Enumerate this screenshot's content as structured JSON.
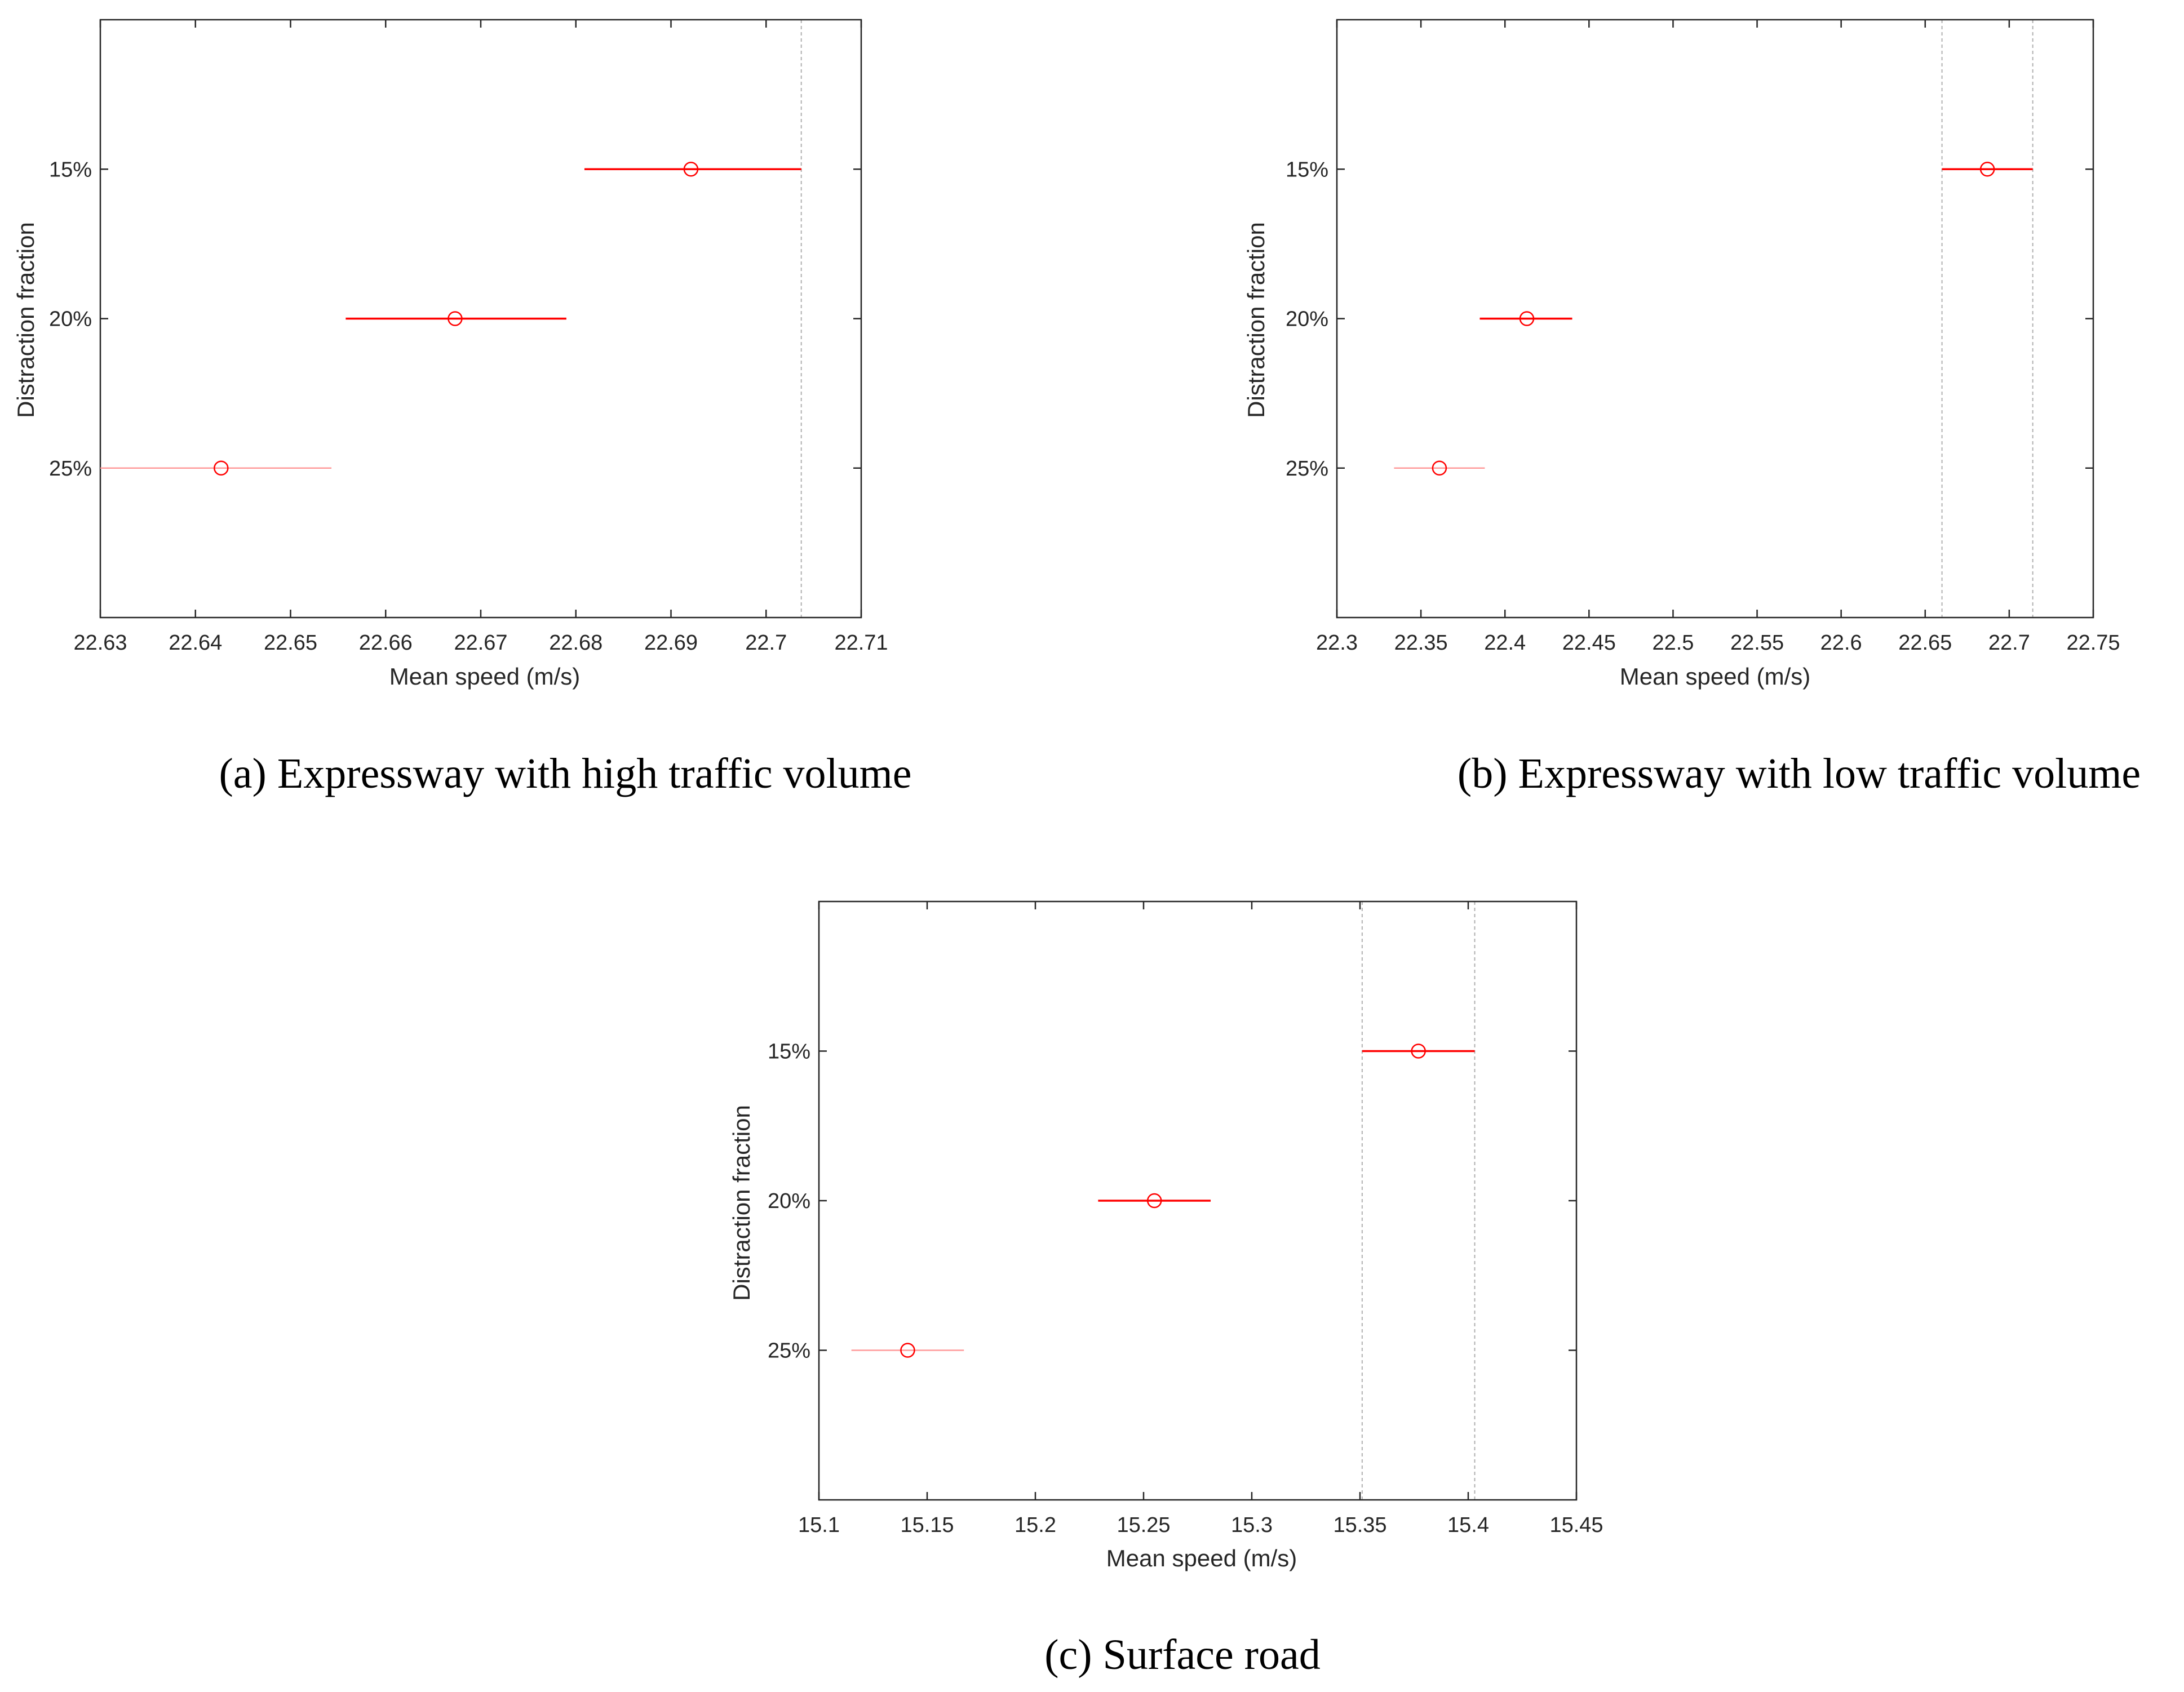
{
  "colors": {
    "series": "#ff0000",
    "series_faint": "#ff9a9a",
    "axes": "#262626",
    "reference_line": "#b0b0b0"
  },
  "chart_data": [
    {
      "type": "scatter",
      "subtype": "multiple-comparison-intervals",
      "caption": "(a) Expressway with high traffic volume",
      "xlabel": "Mean speed (m/s)",
      "ylabel": "Distraction fraction",
      "categories": [
        "15%",
        "20%",
        "25%"
      ],
      "xlim": [
        22.63,
        22.71
      ],
      "xticks": [
        22.63,
        22.64,
        22.65,
        22.66,
        22.67,
        22.68,
        22.69,
        22.7,
        22.71
      ],
      "xtick_labels": [
        "22.63",
        "22.64",
        "22.65",
        "22.66",
        "22.67",
        "22.68",
        "22.69",
        "22.7",
        "22.71"
      ],
      "series": [
        {
          "means": [
            22.6921,
            22.6673,
            22.6427
          ],
          "lower": [
            22.6809,
            22.6558,
            22.63
          ],
          "upper": [
            22.7037,
            22.679,
            22.6543
          ]
        }
      ],
      "highlighted_group": "25%",
      "reference_lines": [
        22.7037
      ]
    },
    {
      "type": "scatter",
      "subtype": "multiple-comparison-intervals",
      "caption": "(b) Expressway with low traffic volume",
      "xlabel": "Mean speed (m/s)",
      "ylabel": "Distraction fraction",
      "categories": [
        "15%",
        "20%",
        "25%"
      ],
      "xlim": [
        22.3,
        22.75
      ],
      "xticks": [
        22.3,
        22.35,
        22.4,
        22.45,
        22.5,
        22.55,
        22.6,
        22.65,
        22.7,
        22.75
      ],
      "xtick_labels": [
        "22.3",
        "22.35",
        "22.4",
        "22.45",
        "22.5",
        "22.55",
        "22.6",
        "22.65",
        "22.7",
        "22.75"
      ],
      "series": [
        {
          "means": [
            22.687,
            22.413,
            22.361
          ],
          "lower": [
            22.66,
            22.385,
            22.334
          ],
          "upper": [
            22.714,
            22.44,
            22.388
          ]
        }
      ],
      "highlighted_group": "25%",
      "reference_lines": [
        22.66,
        22.714
      ]
    },
    {
      "type": "scatter",
      "subtype": "multiple-comparison-intervals",
      "caption": "(c) Surface road",
      "xlabel": "Mean speed (m/s)",
      "ylabel": "Distraction fraction",
      "categories": [
        "15%",
        "20%",
        "25%"
      ],
      "xlim": [
        15.1,
        15.45
      ],
      "xticks": [
        15.1,
        15.15,
        15.2,
        15.25,
        15.3,
        15.35,
        15.4,
        15.45
      ],
      "xtick_labels": [
        "15.1",
        "15.15",
        "15.2",
        "15.25",
        "15.3",
        "15.35",
        "15.4",
        "15.45"
      ],
      "series": [
        {
          "means": [
            15.377,
            15.255,
            15.141
          ],
          "lower": [
            15.351,
            15.229,
            15.115
          ],
          "upper": [
            15.403,
            15.281,
            15.167
          ]
        }
      ],
      "highlighted_group": "25%",
      "reference_lines": [
        15.351,
        15.403
      ]
    }
  ]
}
